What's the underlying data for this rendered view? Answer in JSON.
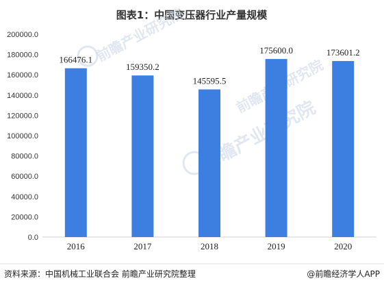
{
  "chart_data": {
    "type": "bar",
    "title": "图表1：中国变压器行业产量规模",
    "categories": [
      "2016",
      "2017",
      "2018",
      "2019",
      "2020"
    ],
    "values": [
      166476.1,
      159350.2,
      145595.5,
      175600.0,
      173601.2
    ],
    "value_labels": [
      "166476.1",
      "159350.2",
      "145595.5",
      "175600.0",
      "173601.2"
    ],
    "ylim": [
      0,
      200000
    ],
    "yticks": [
      "0.0",
      "20000.0",
      "40000.0",
      "60000.0",
      "80000.0",
      "100000.0",
      "120000.0",
      "140000.0",
      "160000.0",
      "180000.0",
      "200000.0"
    ],
    "xlabel": "",
    "ylabel": "",
    "grid": false,
    "bar_color": "#3c7fe0"
  },
  "footer": {
    "source": "资料来源：中国机械工业联合会 前瞻产业研究院整理",
    "credit": "@前瞻经济学人APP"
  },
  "watermark": {
    "text": "前瞻产业研究院"
  }
}
